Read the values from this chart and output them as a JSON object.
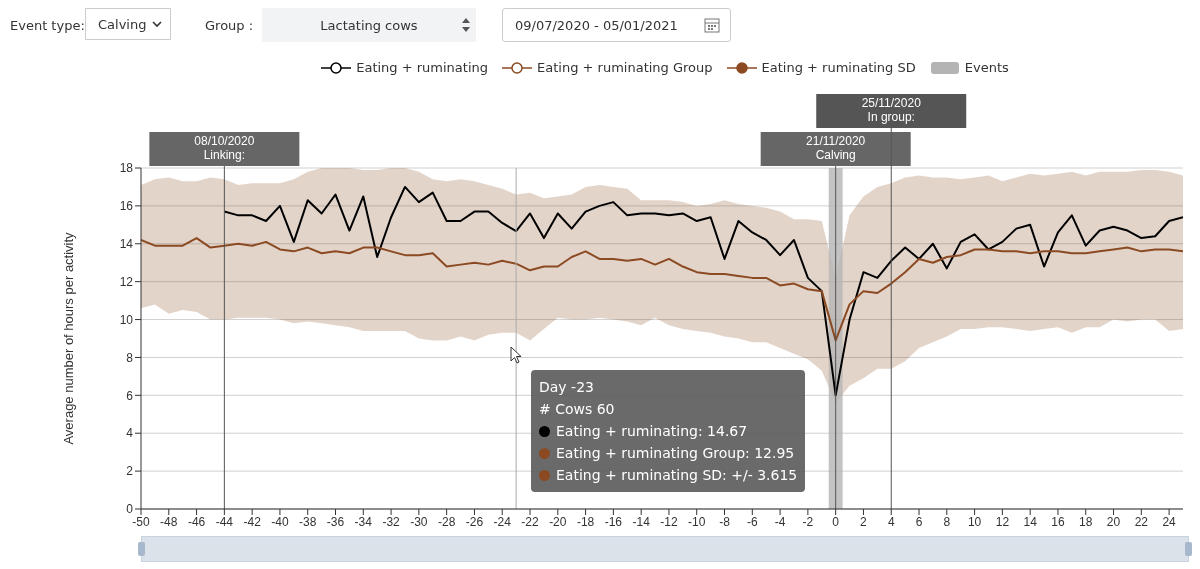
{
  "chart_data": {
    "type": "line",
    "ylabel": "Average number of hours per activity",
    "x": [
      -50,
      -49,
      -48,
      -47,
      -46,
      -45,
      -44,
      -43,
      -42,
      -41,
      -40,
      -39,
      -38,
      -37,
      -36,
      -35,
      -34,
      -33,
      -32,
      -31,
      -30,
      -29,
      -28,
      -27,
      -26,
      -25,
      -24,
      -23,
      -22,
      -21,
      -20,
      -19,
      -18,
      -17,
      -16,
      -15,
      -14,
      -13,
      -12,
      -11,
      -10,
      -9,
      -8,
      -7,
      -6,
      -5,
      -4,
      -3,
      -2,
      -1,
      0,
      1,
      2,
      3,
      4,
      5,
      6,
      7,
      8,
      9,
      10,
      11,
      12,
      13,
      14,
      15,
      16,
      17,
      18,
      19,
      20,
      21,
      22,
      23,
      24,
      25
    ],
    "series": [
      {
        "name": "Eating + ruminating",
        "color": "#000000",
        "values": [
          null,
          null,
          null,
          null,
          null,
          null,
          15.7,
          15.5,
          15.5,
          15.2,
          16.0,
          14.1,
          16.3,
          15.6,
          16.6,
          14.7,
          16.5,
          13.3,
          15.4,
          17.0,
          16.2,
          16.7,
          15.2,
          15.2,
          15.7,
          15.7,
          15.1,
          14.67,
          15.6,
          14.3,
          15.6,
          14.8,
          15.7,
          16.0,
          16.2,
          15.5,
          15.6,
          15.6,
          15.5,
          15.6,
          15.2,
          15.4,
          13.2,
          15.2,
          14.6,
          14.2,
          13.4,
          14.2,
          12.2,
          11.5,
          6.0,
          10.0,
          12.5,
          12.2,
          13.1,
          13.8,
          13.2,
          14.0,
          12.7,
          14.1,
          14.5,
          13.7,
          14.1,
          14.8,
          15.0,
          12.8,
          14.6,
          15.5,
          13.9,
          14.7,
          14.9,
          14.7,
          14.3,
          14.4,
          15.2,
          15.4
        ]
      },
      {
        "name": "Eating + ruminating Group",
        "color": "#8b4a22",
        "values": [
          14.2,
          13.9,
          13.9,
          13.9,
          14.3,
          13.8,
          13.9,
          14.0,
          13.9,
          14.1,
          13.7,
          13.6,
          13.8,
          13.5,
          13.6,
          13.5,
          13.8,
          13.8,
          13.6,
          13.4,
          13.4,
          13.5,
          12.8,
          12.9,
          13.0,
          12.9,
          13.1,
          12.95,
          12.6,
          12.8,
          12.8,
          13.3,
          13.6,
          13.2,
          13.2,
          13.1,
          13.2,
          12.9,
          13.2,
          12.8,
          12.5,
          12.4,
          12.4,
          12.3,
          12.2,
          12.2,
          11.8,
          11.9,
          11.6,
          11.5,
          8.9,
          10.8,
          11.5,
          11.4,
          11.9,
          12.5,
          13.2,
          13.0,
          13.3,
          13.4,
          13.7,
          13.7,
          13.6,
          13.6,
          13.5,
          13.6,
          13.6,
          13.5,
          13.5,
          13.6,
          13.7,
          13.8,
          13.6,
          13.7,
          13.7,
          13.6
        ],
        "lower": [
          10.6,
          10.8,
          10.3,
          10.5,
          10.4,
          10.0,
          10.0,
          10.1,
          10.1,
          10.1,
          10.0,
          9.8,
          9.9,
          9.8,
          9.7,
          9.6,
          9.4,
          9.4,
          9.4,
          9.4,
          9.0,
          8.9,
          8.9,
          9.1,
          8.9,
          9.2,
          9.3,
          9.3,
          8.9,
          9.5,
          10.1,
          10.0,
          10.0,
          10.1,
          10.0,
          9.9,
          9.7,
          10.1,
          9.7,
          9.5,
          9.4,
          9.3,
          9.1,
          9.0,
          8.8,
          8.8,
          8.5,
          8.2,
          7.9,
          7.3,
          5.6,
          6.5,
          6.9,
          7.4,
          7.4,
          7.8,
          8.5,
          8.8,
          9.1,
          9.5,
          9.5,
          9.6,
          9.6,
          9.5,
          9.4,
          9.5,
          9.6,
          9.3,
          9.6,
          9.6,
          10.0,
          9.9,
          10.0,
          10.0,
          9.4,
          9.5
        ],
        "upper": [
          17.1,
          17.4,
          17.5,
          17.3,
          17.3,
          17.5,
          17.4,
          17.1,
          17.2,
          17.2,
          17.2,
          17.4,
          17.8,
          18.0,
          18.0,
          18.0,
          17.9,
          17.9,
          18.0,
          18.0,
          17.8,
          17.4,
          17.3,
          17.4,
          17.3,
          17.1,
          16.9,
          16.6,
          16.7,
          16.4,
          16.5,
          16.6,
          17.0,
          17.1,
          17.0,
          16.9,
          16.3,
          16.3,
          16.3,
          16.2,
          16.0,
          16.1,
          16.3,
          16.1,
          16.0,
          15.9,
          15.7,
          15.3,
          15.3,
          15.2,
          12.2,
          15.5,
          16.5,
          17.0,
          17.2,
          17.5,
          17.6,
          17.5,
          17.5,
          17.4,
          17.5,
          17.6,
          17.3,
          17.5,
          17.7,
          17.6,
          17.7,
          17.8,
          17.6,
          17.8,
          17.8,
          17.8,
          17.9,
          17.9,
          17.8,
          17.6
        ]
      }
    ],
    "xlim": [
      -50,
      25
    ],
    "xticks": [
      -50,
      -48,
      -46,
      -44,
      -42,
      -40,
      -38,
      -36,
      -34,
      -32,
      -30,
      -28,
      -26,
      -24,
      -22,
      -20,
      -18,
      -16,
      -14,
      -12,
      -10,
      -8,
      -6,
      -4,
      -2,
      0,
      2,
      4,
      6,
      8,
      10,
      12,
      14,
      16,
      18,
      20,
      22,
      24
    ],
    "ylim": [
      0,
      18
    ],
    "yticks": [
      0,
      2,
      4,
      6,
      8,
      10,
      12,
      14,
      16,
      18
    ],
    "grid": "y",
    "legend": "top",
    "bands": [
      {
        "axis": "x",
        "from": -0.5,
        "to": 0.5,
        "label": "Events",
        "color": "#b4b4b4"
      }
    ],
    "ref_lines": [
      {
        "axis": "x",
        "value": -44,
        "label": "08/10/2020\nLinking:",
        "color": "#555555"
      },
      {
        "axis": "x",
        "value": -23,
        "color": "#aaaaaa"
      },
      {
        "axis": "x",
        "value": 0,
        "label": "21/11/2020\nCalving",
        "color": "#555555"
      },
      {
        "axis": "x",
        "value": 4,
        "label": "25/11/2020\nIn group:",
        "color": "#555555"
      }
    ],
    "annotations": [
      "Event type:",
      "Calving",
      "Group :",
      "Lactating cows",
      "09/07/2020 - 05/01/2021",
      "Day -23",
      "# Cows 60",
      "Eating + ruminating: 14.67",
      "Eating + ruminating Group: 12.95",
      "Eating + ruminating SD: +/- 3.615",
      "Eating + ruminating SD"
    ]
  }
}
